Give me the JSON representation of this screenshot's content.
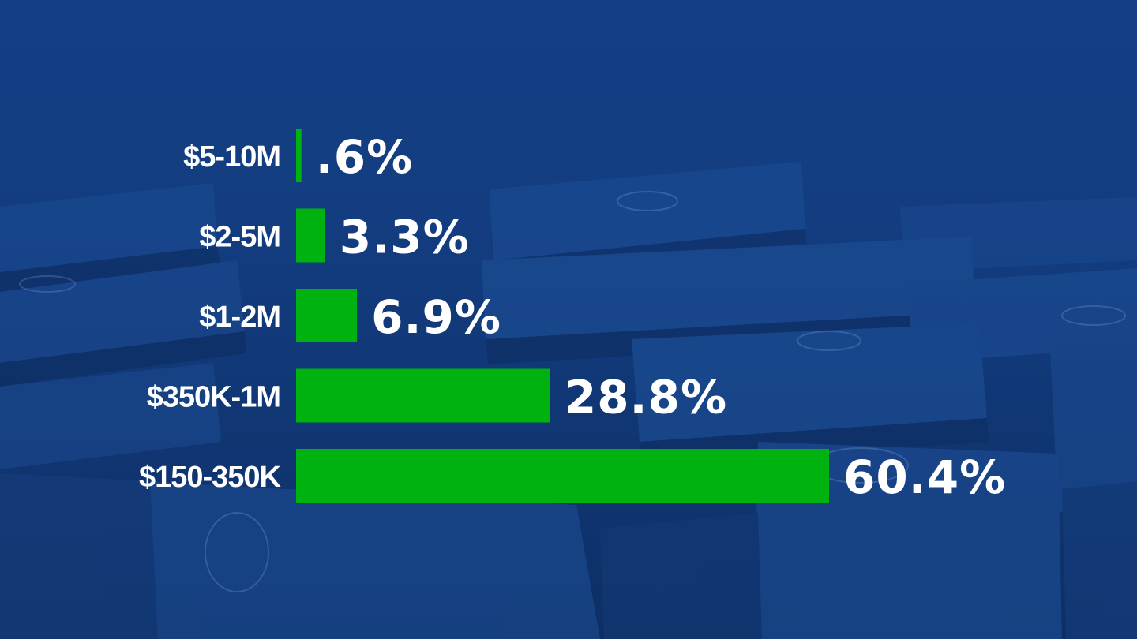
{
  "chart_data": {
    "type": "bar",
    "orientation": "horizontal",
    "categories": [
      "$5-10M",
      "$2-5M",
      "$1-2M",
      "$350K-1M",
      "$150-350K"
    ],
    "values": [
      0.6,
      3.3,
      6.9,
      28.8,
      60.4
    ],
    "value_labels": [
      ".6%",
      "3.3%",
      "6.9%",
      "28.8%",
      "60.4%"
    ],
    "title": "",
    "xlabel": "",
    "ylabel": "",
    "xlim": [
      0,
      60.4
    ],
    "grid": false,
    "legend": "none",
    "bar_color": "#00b20f",
    "background_color": "#123c7e"
  }
}
